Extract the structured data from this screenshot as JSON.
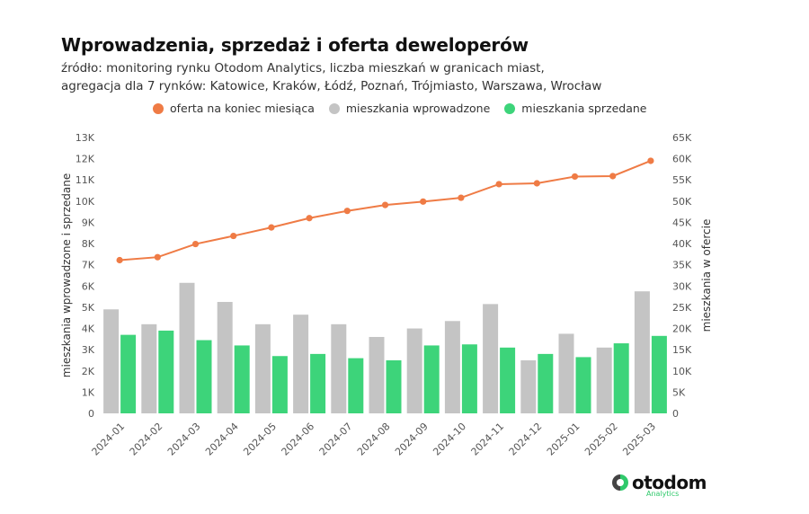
{
  "header": {
    "title": "Wprowadzenia, sprzedaż i oferta deweloperów",
    "subtitle_line1": "źródło: monitoring rynku Otodom Analytics, liczba mieszkań w granicach miast,",
    "subtitle_line2": "agregacja dla 7 rynków: Katowice, Kraków, Łódź, Poznań, Trójmiasto, Warszawa, Wrocław"
  },
  "legend": [
    {
      "label": "oferta na koniec miesiąca",
      "color": "#ef7b45"
    },
    {
      "label": "mieszkania wprowadzone",
      "color": "#c4c4c4"
    },
    {
      "label": "mieszkania sprzedane",
      "color": "#3dd47a"
    }
  ],
  "logo": {
    "name": "otodom",
    "sub": "Analytics"
  },
  "chart_data": {
    "type": "bar",
    "categories": [
      "2024-01",
      "2024-02",
      "2024-03",
      "2024-04",
      "2024-05",
      "2024-06",
      "2024-07",
      "2024-08",
      "2024-09",
      "2024-10",
      "2024-11",
      "2024-12",
      "2025-01",
      "2025-02",
      "2025-03"
    ],
    "series": [
      {
        "name": "mieszkania wprowadzone",
        "type": "bar",
        "axis": "left",
        "color": "#c4c4c4",
        "values": [
          4900,
          4200,
          6150,
          5250,
          4200,
          4650,
          4200,
          3600,
          4000,
          4350,
          5150,
          2500,
          3750,
          3100,
          5750
        ]
      },
      {
        "name": "mieszkania sprzedane",
        "type": "bar",
        "axis": "left",
        "color": "#3dd47a",
        "values": [
          3700,
          3900,
          3450,
          3200,
          2700,
          2800,
          2600,
          2500,
          3200,
          3250,
          3100,
          2800,
          2650,
          3300,
          3650
        ]
      },
      {
        "name": "oferta na koniec miesiąca",
        "type": "line",
        "axis": "right",
        "color": "#ef7b45",
        "values": [
          36100,
          36800,
          39900,
          41800,
          43800,
          46000,
          47700,
          49100,
          49900,
          50800,
          54000,
          54200,
          55800,
          55900,
          59500
        ]
      }
    ],
    "y_left": {
      "label": "mieszkania wprowadzone i sprzedane",
      "ylim": [
        0,
        13000
      ],
      "ticks": [
        "0",
        "1K",
        "2K",
        "3K",
        "4K",
        "5K",
        "6K",
        "7K",
        "8K",
        "9K",
        "10K",
        "11K",
        "12K",
        "13K"
      ]
    },
    "y_right": {
      "label": "mieszkania w ofercie",
      "ylim": [
        0,
        65000
      ],
      "ticks": [
        "0",
        "5K",
        "10K",
        "15K",
        "20K",
        "25K",
        "30K",
        "35K",
        "40K",
        "45K",
        "50K",
        "55K",
        "60K",
        "65K"
      ]
    },
    "grid": false,
    "legend_position": "top"
  }
}
